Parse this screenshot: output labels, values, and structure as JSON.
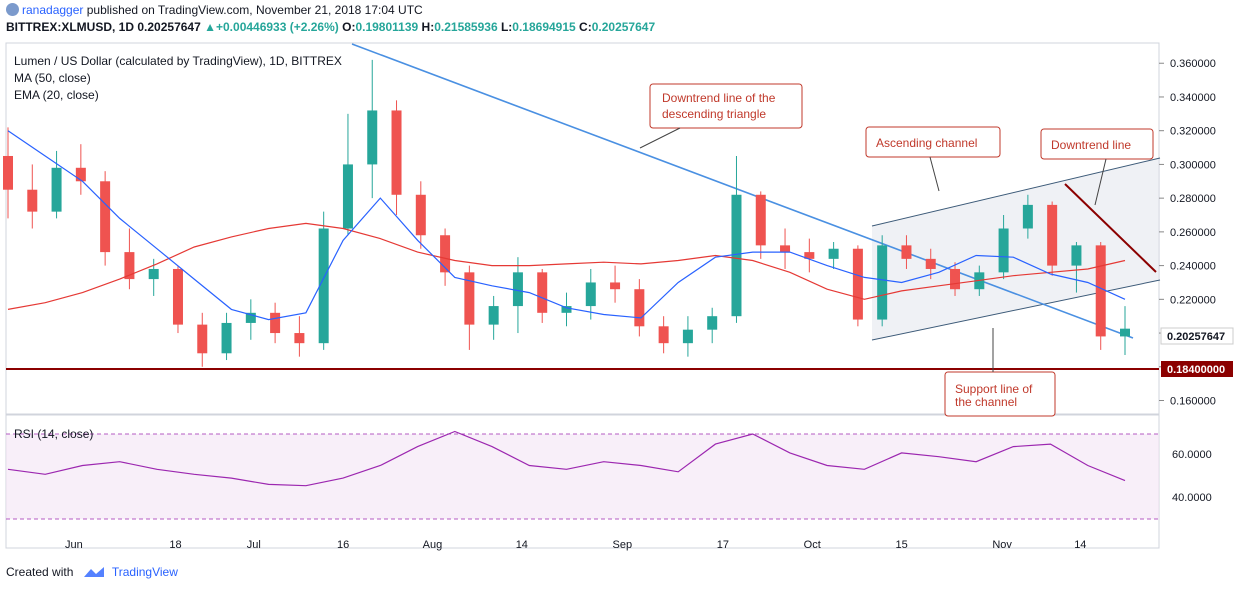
{
  "header": {
    "user": "ranadagger",
    "published_text": "published on TradingView.com, November 21, 2018 17:04 UTC",
    "symbol": "BITTREX:XLMUSD, 1D",
    "last": "0.20257647",
    "change": "+0.00446933 (+2.26%)",
    "ohlc_label_o": "O:",
    "ohlc_o": "0.19801139",
    "ohlc_label_h": "H:",
    "ohlc_h": "0.21585936",
    "ohlc_label_l": "L:",
    "ohlc_l": "0.18694915",
    "ohlc_label_c": "C:",
    "ohlc_c": "0.20257647"
  },
  "legend": {
    "title": "Lumen / US Dollar (calculated by TradingView), 1D, BITTREX",
    "ma": "MA (50, close)",
    "ema": "EMA (20, close)",
    "rsi": "RSI (14, close)"
  },
  "annotations": {
    "downtrend_triangle": [
      "Downtrend line of the",
      "descending triangle"
    ],
    "ascending_channel": "Ascending channel",
    "downtrend_line": "Downtrend line",
    "support": [
      "Support line of",
      "the channel"
    ]
  },
  "footer": {
    "created_with": "Created with",
    "brand": "TradingView"
  },
  "colors": {
    "up": "#26a69a",
    "down": "#ef5350",
    "ema": "#2962ff",
    "ma": "#e53935",
    "support": "#8b0000",
    "trend": "#4a90e2",
    "rsi": "#9c27b0",
    "price_tag": "#8b0000"
  },
  "chart_data": [
    {
      "type": "candlestick",
      "title": "Lumen / US Dollar (calculated by TradingView), 1D, BITTREX",
      "y_axis_ticks": [
        "0.360000",
        "0.340000",
        "0.320000",
        "0.300000",
        "0.280000",
        "0.260000",
        "0.240000",
        "0.220000",
        "0.200000",
        "0.180000",
        "0.160000"
      ],
      "ylim": [
        0.152,
        0.372
      ],
      "x_tick_labels": [
        "Jun",
        "18",
        "Jul",
        "16",
        "Aug",
        "14",
        "Sep",
        "17",
        "Oct",
        "15",
        "Nov",
        "14"
      ],
      "last_price_label": "0.20257647",
      "support_label": "0.18400000",
      "support_level": 0.184,
      "series": [
        {
          "name": "MA (50, close)",
          "values": [
            0.214,
            0.218,
            0.224,
            0.232,
            0.241,
            0.251,
            0.257,
            0.262,
            0.265,
            0.262,
            0.256,
            0.248,
            0.243,
            0.24,
            0.24,
            0.241,
            0.242,
            0.241,
            0.243,
            0.246,
            0.243,
            0.236,
            0.226,
            0.22,
            0.225,
            0.228,
            0.231,
            0.234,
            0.236,
            0.238,
            0.243
          ]
        },
        {
          "name": "EMA (20, close)",
          "values": [
            0.32,
            0.305,
            0.29,
            0.268,
            0.25,
            0.232,
            0.214,
            0.208,
            0.212,
            0.255,
            0.28,
            0.255,
            0.233,
            0.228,
            0.224,
            0.215,
            0.211,
            0.209,
            0.23,
            0.245,
            0.248,
            0.248,
            0.24,
            0.233,
            0.23,
            0.236,
            0.246,
            0.245,
            0.235,
            0.23,
            0.22
          ]
        },
        {
          "name": "RSI (14, close)",
          "values": [
            42,
            38,
            45,
            48,
            42,
            38,
            35,
            30,
            29,
            35,
            45,
            60,
            72,
            60,
            45,
            42,
            48,
            45,
            40,
            62,
            70,
            55,
            45,
            42,
            55,
            52,
            48,
            60,
            62,
            45,
            33
          ]
        }
      ],
      "candles": [
        {
          "date": "2018-05-24",
          "o": 0.305,
          "h": 0.322,
          "l": 0.268,
          "c": 0.285
        },
        {
          "date": "2018-05-28",
          "o": 0.285,
          "h": 0.3,
          "l": 0.262,
          "c": 0.272
        },
        {
          "date": "2018-06-01",
          "o": 0.272,
          "h": 0.308,
          "l": 0.268,
          "c": 0.298
        },
        {
          "date": "2018-06-05",
          "o": 0.298,
          "h": 0.312,
          "l": 0.282,
          "c": 0.29
        },
        {
          "date": "2018-06-09",
          "o": 0.29,
          "h": 0.296,
          "l": 0.24,
          "c": 0.248
        },
        {
          "date": "2018-06-13",
          "o": 0.248,
          "h": 0.262,
          "l": 0.226,
          "c": 0.232
        },
        {
          "date": "2018-06-17",
          "o": 0.232,
          "h": 0.244,
          "l": 0.222,
          "c": 0.238
        },
        {
          "date": "2018-06-21",
          "o": 0.238,
          "h": 0.24,
          "l": 0.2,
          "c": 0.205
        },
        {
          "date": "2018-06-25",
          "o": 0.205,
          "h": 0.212,
          "l": 0.18,
          "c": 0.188
        },
        {
          "date": "2018-06-29",
          "o": 0.188,
          "h": 0.212,
          "l": 0.184,
          "c": 0.206
        },
        {
          "date": "2018-07-03",
          "o": 0.206,
          "h": 0.22,
          "l": 0.196,
          "c": 0.212
        },
        {
          "date": "2018-07-07",
          "o": 0.212,
          "h": 0.218,
          "l": 0.194,
          "c": 0.2
        },
        {
          "date": "2018-07-11",
          "o": 0.2,
          "h": 0.21,
          "l": 0.186,
          "c": 0.194
        },
        {
          "date": "2018-07-15",
          "o": 0.194,
          "h": 0.272,
          "l": 0.19,
          "c": 0.262
        },
        {
          "date": "2018-07-19",
          "o": 0.262,
          "h": 0.33,
          "l": 0.258,
          "c": 0.3
        },
        {
          "date": "2018-07-23",
          "o": 0.3,
          "h": 0.362,
          "l": 0.28,
          "c": 0.332
        },
        {
          "date": "2018-07-27",
          "o": 0.332,
          "h": 0.338,
          "l": 0.27,
          "c": 0.282
        },
        {
          "date": "2018-07-31",
          "o": 0.282,
          "h": 0.29,
          "l": 0.25,
          "c": 0.258
        },
        {
          "date": "2018-08-04",
          "o": 0.258,
          "h": 0.262,
          "l": 0.228,
          "c": 0.236
        },
        {
          "date": "2018-08-08",
          "o": 0.236,
          "h": 0.24,
          "l": 0.19,
          "c": 0.205
        },
        {
          "date": "2018-08-12",
          "o": 0.205,
          "h": 0.222,
          "l": 0.196,
          "c": 0.216
        },
        {
          "date": "2018-08-16",
          "o": 0.216,
          "h": 0.245,
          "l": 0.2,
          "c": 0.236
        },
        {
          "date": "2018-08-20",
          "o": 0.236,
          "h": 0.238,
          "l": 0.206,
          "c": 0.212
        },
        {
          "date": "2018-08-24",
          "o": 0.212,
          "h": 0.224,
          "l": 0.204,
          "c": 0.216
        },
        {
          "date": "2018-08-28",
          "o": 0.216,
          "h": 0.238,
          "l": 0.208,
          "c": 0.23
        },
        {
          "date": "2018-09-01",
          "o": 0.23,
          "h": 0.24,
          "l": 0.218,
          "c": 0.226
        },
        {
          "date": "2018-09-05",
          "o": 0.226,
          "h": 0.232,
          "l": 0.198,
          "c": 0.204
        },
        {
          "date": "2018-09-09",
          "o": 0.204,
          "h": 0.21,
          "l": 0.188,
          "c": 0.194
        },
        {
          "date": "2018-09-13",
          "o": 0.194,
          "h": 0.21,
          "l": 0.186,
          "c": 0.202
        },
        {
          "date": "2018-09-17",
          "o": 0.202,
          "h": 0.215,
          "l": 0.194,
          "c": 0.21
        },
        {
          "date": "2018-09-21",
          "o": 0.21,
          "h": 0.305,
          "l": 0.206,
          "c": 0.282
        },
        {
          "date": "2018-09-25",
          "o": 0.282,
          "h": 0.284,
          "l": 0.244,
          "c": 0.252
        },
        {
          "date": "2018-09-29",
          "o": 0.252,
          "h": 0.262,
          "l": 0.238,
          "c": 0.248
        },
        {
          "date": "2018-10-03",
          "o": 0.248,
          "h": 0.256,
          "l": 0.236,
          "c": 0.244
        },
        {
          "date": "2018-10-07",
          "o": 0.244,
          "h": 0.254,
          "l": 0.238,
          "c": 0.25
        },
        {
          "date": "2018-10-11",
          "o": 0.25,
          "h": 0.252,
          "l": 0.204,
          "c": 0.208
        },
        {
          "date": "2018-10-15",
          "o": 0.208,
          "h": 0.258,
          "l": 0.204,
          "c": 0.252
        },
        {
          "date": "2018-10-19",
          "o": 0.252,
          "h": 0.258,
          "l": 0.238,
          "c": 0.244
        },
        {
          "date": "2018-10-23",
          "o": 0.244,
          "h": 0.25,
          "l": 0.232,
          "c": 0.238
        },
        {
          "date": "2018-10-27",
          "o": 0.238,
          "h": 0.242,
          "l": 0.222,
          "c": 0.226
        },
        {
          "date": "2018-10-31",
          "o": 0.226,
          "h": 0.24,
          "l": 0.222,
          "c": 0.236
        },
        {
          "date": "2018-11-04",
          "o": 0.236,
          "h": 0.27,
          "l": 0.232,
          "c": 0.262
        },
        {
          "date": "2018-11-08",
          "o": 0.262,
          "h": 0.282,
          "l": 0.256,
          "c": 0.276
        },
        {
          "date": "2018-11-12",
          "o": 0.276,
          "h": 0.278,
          "l": 0.234,
          "c": 0.24
        },
        {
          "date": "2018-11-16",
          "o": 0.24,
          "h": 0.254,
          "l": 0.224,
          "c": 0.252
        },
        {
          "date": "2018-11-19",
          "o": 0.252,
          "h": 0.254,
          "l": 0.19,
          "c": 0.198
        },
        {
          "date": "2018-11-21",
          "o": 0.198,
          "h": 0.216,
          "l": 0.187,
          "c": 0.2026
        }
      ]
    }
  ]
}
